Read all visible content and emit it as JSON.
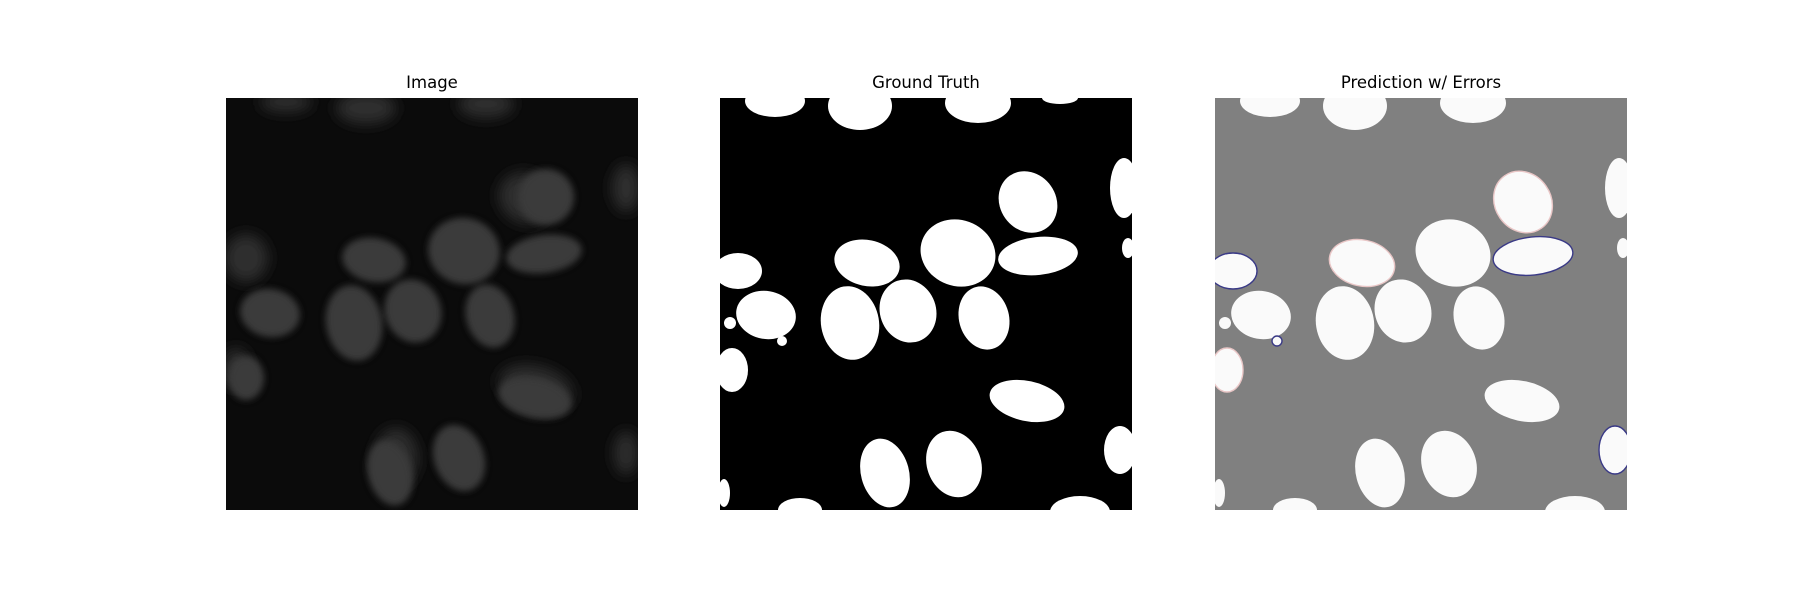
{
  "figure": {
    "panels": [
      {
        "title": "Image",
        "background": "#0b0b0b",
        "cell_color": "#3a3a3a"
      },
      {
        "title": "Ground Truth",
        "background": "#000000",
        "cell_color": "#ffffff"
      },
      {
        "title": "Prediction w/ Errors",
        "background": "#808080",
        "cell_color": "#fafafa"
      }
    ]
  }
}
